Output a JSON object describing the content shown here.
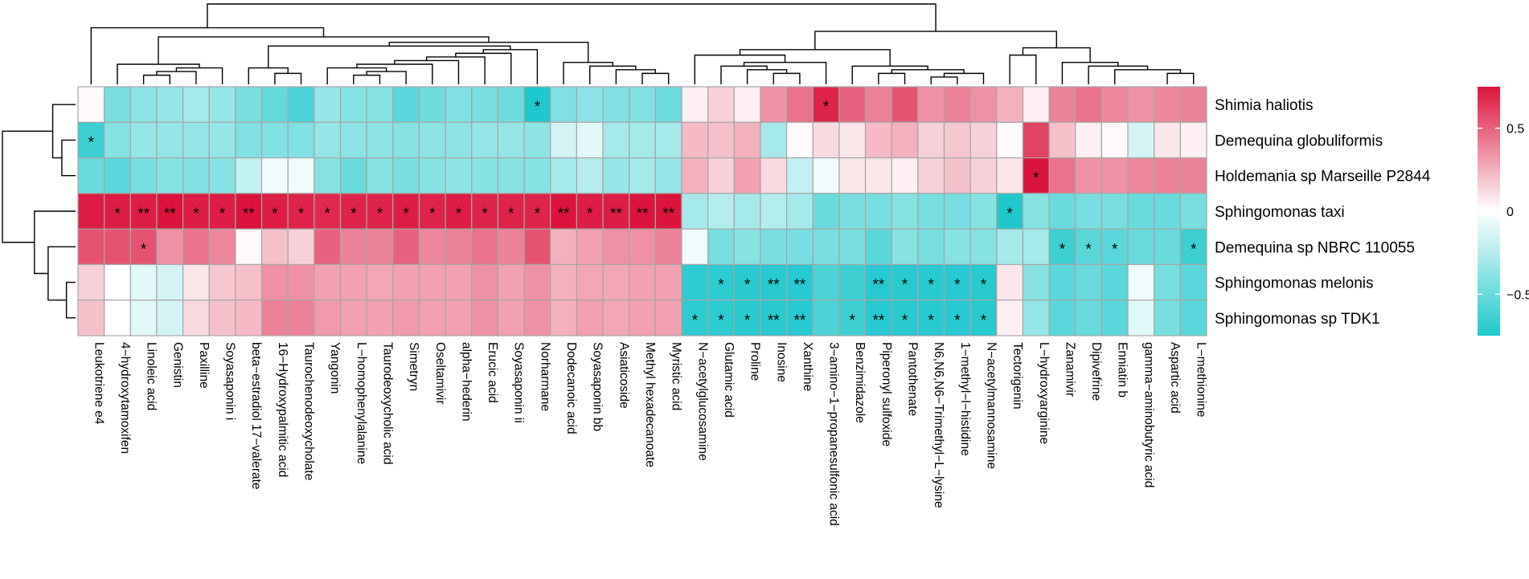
{
  "chart_data": {
    "type": "heatmap",
    "title": "",
    "colormap": {
      "low": "#1ec8cd",
      "mid": "#ffffff",
      "high": "#dc143c"
    },
    "value_range": [
      -0.75,
      0.75
    ],
    "legend": {
      "position": "right",
      "ticks": [
        0.5,
        0,
        -0.5
      ],
      "tick_labels": [
        "0.5",
        "0",
        "−0.5"
      ]
    },
    "rows": [
      "Shimia haliotis",
      "Demequina globuliformis",
      "Holdemania sp Marseille P2844",
      "Sphingomonas taxi",
      "Demequina sp NBRC 110055",
      "Sphingomonas melonis",
      "Sphingomonas sp TDK1"
    ],
    "columns": [
      "Leukotriene e4",
      "4−hydroxytamoxifen",
      "Linoleic acid",
      "Genistin",
      "Paxilline",
      "Soyasaponin i",
      "beta−estradiol 17−valerate",
      "16−Hydroxypalmitic acid",
      "Taurochenodeoxycholate",
      "Yangonin",
      "L−homophenylalanine",
      "Taurodeoxycholic acid",
      "Simetryn",
      "Oseltamivir",
      "alpha−hederin",
      "Erucic acid",
      "Soyasaponin ii",
      "Norharmane",
      "Dodecanoic acid",
      "Soyasaponin bb",
      "Asiaticoside",
      "Methyl hexadecanoate",
      "Myristic acid",
      "N−acetylglucosamine",
      "Glutamic acid",
      "Proline",
      "Inosine",
      "Xanthine",
      "3−amino−1−propanesulfonic acid",
      "Benzimidazole",
      "Piperonyl sulfoxide",
      "Pantothenate",
      "N6,N6,N6−Trimethyl−L−lysine",
      "1−methyl−l−histidine",
      "N−acetylmannosamine",
      "Tectorigenin",
      "L−hydroxyarginine",
      "Zanamivir",
      "Dipivefrine",
      "Enniatin b",
      "gamma−aminobutyric acid",
      "Aspartic acid",
      "L−methionine"
    ],
    "values": [
      [
        0.02,
        -0.45,
        -0.38,
        -0.35,
        -0.3,
        -0.35,
        -0.45,
        -0.52,
        -0.6,
        -0.35,
        -0.4,
        -0.4,
        -0.55,
        -0.48,
        -0.42,
        -0.45,
        -0.48,
        -0.75,
        -0.42,
        -0.38,
        -0.42,
        -0.42,
        -0.48,
        0.05,
        0.15,
        0.05,
        0.35,
        0.45,
        0.7,
        0.5,
        0.4,
        0.55,
        0.35,
        0.4,
        0.35,
        0.25,
        0.05,
        0.4,
        0.45,
        0.38,
        0.35,
        0.38,
        0.4
      ],
      [
        -0.65,
        -0.4,
        -0.35,
        -0.35,
        -0.35,
        -0.35,
        -0.42,
        -0.42,
        -0.42,
        -0.35,
        -0.38,
        -0.38,
        -0.4,
        -0.38,
        -0.38,
        -0.35,
        -0.35,
        -0.38,
        -0.15,
        -0.1,
        -0.3,
        -0.3,
        -0.3,
        0.22,
        0.2,
        0.25,
        -0.3,
        0.02,
        0.12,
        0.08,
        0.22,
        0.25,
        0.15,
        0.18,
        0.15,
        0.02,
        0.6,
        0.2,
        0.05,
        0.02,
        -0.15,
        0.08,
        0.05
      ],
      [
        -0.5,
        -0.55,
        -0.45,
        -0.4,
        -0.42,
        -0.4,
        -0.2,
        -0.05,
        -0.05,
        -0.4,
        -0.5,
        -0.4,
        -0.45,
        -0.4,
        -0.38,
        -0.4,
        -0.4,
        -0.4,
        -0.3,
        -0.25,
        -0.35,
        -0.3,
        -0.35,
        0.25,
        0.15,
        0.3,
        0.12,
        -0.2,
        -0.05,
        0.08,
        0.08,
        0.05,
        0.15,
        0.2,
        0.15,
        0.08,
        0.75,
        0.45,
        0.35,
        0.35,
        0.38,
        0.4,
        0.4
      ],
      [
        0.72,
        0.72,
        0.72,
        0.78,
        0.72,
        0.72,
        0.75,
        0.72,
        0.7,
        0.68,
        0.7,
        0.7,
        0.72,
        0.7,
        0.72,
        0.7,
        0.7,
        0.7,
        0.75,
        0.72,
        0.72,
        0.75,
        0.75,
        -0.3,
        -0.25,
        -0.3,
        -0.25,
        -0.3,
        -0.5,
        -0.45,
        -0.45,
        -0.4,
        -0.45,
        -0.45,
        -0.4,
        -0.75,
        -0.4,
        -0.5,
        -0.45,
        -0.45,
        -0.5,
        -0.5,
        -0.45
      ],
      [
        0.55,
        0.55,
        0.55,
        0.35,
        0.45,
        0.38,
        0.02,
        0.2,
        0.15,
        0.5,
        0.4,
        0.4,
        0.5,
        0.38,
        0.4,
        0.45,
        0.4,
        0.55,
        0.25,
        0.3,
        0.35,
        0.35,
        0.4,
        -0.05,
        -0.45,
        -0.4,
        -0.45,
        -0.45,
        -0.45,
        -0.45,
        -0.55,
        -0.4,
        -0.45,
        -0.4,
        -0.4,
        -0.3,
        -0.3,
        -0.65,
        -0.55,
        -0.55,
        -0.5,
        -0.5,
        -0.65
      ],
      [
        0.15,
        0.0,
        -0.1,
        -0.15,
        0.08,
        0.18,
        0.2,
        0.35,
        0.35,
        0.3,
        0.3,
        0.28,
        0.3,
        0.3,
        0.3,
        0.35,
        0.3,
        0.35,
        0.25,
        0.28,
        0.28,
        0.3,
        0.3,
        -0.7,
        -0.7,
        -0.72,
        -0.72,
        -0.72,
        -0.6,
        -0.65,
        -0.72,
        -0.72,
        -0.72,
        -0.72,
        -0.72,
        0.08,
        -0.4,
        -0.55,
        -0.5,
        -0.55,
        -0.05,
        -0.45,
        -0.55
      ],
      [
        0.2,
        0.0,
        -0.1,
        -0.15,
        0.12,
        0.2,
        0.22,
        0.4,
        0.4,
        0.32,
        0.3,
        0.3,
        0.32,
        0.3,
        0.3,
        0.35,
        0.3,
        0.35,
        0.25,
        0.3,
        0.28,
        0.3,
        0.3,
        -0.7,
        -0.7,
        -0.72,
        -0.72,
        -0.72,
        -0.6,
        -0.65,
        -0.72,
        -0.72,
        -0.72,
        -0.72,
        -0.72,
        0.05,
        -0.35,
        -0.55,
        -0.5,
        -0.55,
        -0.1,
        -0.45,
        -0.55
      ]
    ],
    "significance": [
      [
        "",
        "",
        "",
        "",
        "",
        "",
        "",
        "",
        "",
        "",
        "",
        "",
        "",
        "",
        "",
        "",
        "",
        "*",
        "",
        "",
        "",
        "",
        "",
        "",
        "",
        "",
        "",
        "",
        "*",
        "",
        "",
        "",
        "",
        "",
        "",
        "",
        "",
        "",
        "",
        "",
        "",
        "",
        ""
      ],
      [
        "*",
        "",
        "",
        "",
        "",
        "",
        "",
        "",
        "",
        "",
        "",
        "",
        "",
        "",
        "",
        "",
        "",
        "",
        "",
        "",
        "",
        "",
        "",
        "",
        "",
        "",
        "",
        "",
        "",
        "",
        "",
        "",
        "",
        "",
        "",
        "",
        "",
        "",
        "",
        "",
        "",
        "",
        ""
      ],
      [
        "",
        "",
        "",
        "",
        "",
        "",
        "",
        "",
        "",
        "",
        "",
        "",
        "",
        "",
        "",
        "",
        "",
        "",
        "",
        "",
        "",
        "",
        "",
        "",
        "",
        "",
        "",
        "",
        "",
        "",
        "",
        "",
        "",
        "",
        "",
        "",
        "*",
        "",
        "",
        "",
        "",
        "",
        ""
      ],
      [
        "",
        "*",
        "**",
        "**",
        "*",
        "*",
        "**",
        "*",
        "*",
        "*",
        "*",
        "*",
        "*",
        "*",
        "*",
        "*",
        "*",
        "*",
        "**",
        "*",
        "**",
        "**",
        "**",
        "",
        "",
        "",
        "",
        "",
        "",
        "",
        "",
        "",
        "",
        "",
        "",
        "*",
        "",
        "",
        "",
        "",
        "",
        "",
        ""
      ],
      [
        "",
        "",
        "*",
        "",
        "",
        "",
        "",
        "",
        "",
        "",
        "",
        "",
        "",
        "",
        "",
        "",
        "",
        "",
        "",
        "",
        "",
        "",
        "",
        "",
        "",
        "",
        "",
        "",
        "",
        "",
        "",
        "",
        "",
        "",
        "",
        "",
        "",
        "*",
        "*",
        "*",
        "",
        "",
        "*"
      ],
      [
        "",
        "",
        "",
        "",
        "",
        "",
        "",
        "",
        "",
        "",
        "",
        "",
        "",
        "",
        "",
        "",
        "",
        "",
        "",
        "",
        "",
        "",
        "",
        "",
        "*",
        "*",
        "**",
        "**",
        "",
        "",
        "**",
        "*",
        "*",
        "*",
        "*",
        "",
        "",
        "",
        "",
        "",
        "",
        "",
        ""
      ],
      [
        "",
        "",
        "",
        "",
        "",
        "",
        "",
        "",
        "",
        "",
        "",
        "",
        "",
        "",
        "",
        "",
        "",
        "",
        "",
        "",
        "",
        "",
        "",
        "*",
        "*",
        "*",
        "**",
        "**",
        "",
        "*",
        "**",
        "*",
        "*",
        "*",
        "*",
        "",
        "",
        "",
        "",
        "",
        "",
        "",
        ""
      ]
    ],
    "col_dendrogram": [
      [
        [
          43,
          40,
          0.2
        ],
        [
          41,
          42,
          0.3
        ],
        [
          44,
          39,
          0.4
        ],
        [
          45,
          38,
          0.5
        ],
        [
          46,
          37,
          0.6
        ],
        [
          35,
          36,
          0.8
        ],
        [
          47,
          48,
          1.0
        ],
        [
          2,
          3,
          0.25
        ],
        [
          50,
          4,
          0.35
        ],
        [
          51,
          5,
          0.45
        ],
        [
          52,
          1,
          0.55
        ],
        [
          10,
          11,
          0.25
        ],
        [
          54,
          12,
          0.35
        ],
        [
          55,
          9,
          0.45
        ],
        [
          56,
          13,
          0.55
        ],
        [
          57,
          14,
          0.65
        ],
        [
          58,
          15,
          0.75
        ],
        [
          59,
          16,
          0.85
        ],
        [
          60,
          17,
          0.95
        ],
        [
          7,
          8,
          0.3
        ],
        [
          6,
          62,
          0.45
        ],
        [
          63,
          61,
          1.05
        ],
        [
          22,
          21,
          0.3
        ],
        [
          65,
          20,
          0.4
        ],
        [
          66,
          19,
          0.5
        ],
        [
          67,
          18,
          0.6
        ],
        [
          64,
          68,
          1.15
        ],
        [
          53,
          69,
          1.3
        ],
        [
          0,
          70,
          1.55
        ],
        [
          32,
          33,
          0.2
        ],
        [
          72,
          34,
          0.3
        ],
        [
          30,
          31,
          0.3
        ],
        [
          73,
          74,
          0.4
        ],
        [
          29,
          75,
          0.5
        ],
        [
          27,
          26,
          0.3
        ],
        [
          77,
          25,
          0.4
        ],
        [
          24,
          78,
          0.5
        ],
        [
          79,
          28,
          0.6
        ],
        [
          23,
          80,
          0.8
        ],
        [
          81,
          76,
          0.95
        ],
        [
          82,
          49,
          1.45
        ],
        [
          71,
          83,
          2.2
        ]
      ]
    ],
    "row_dendrogram": [
      [
        1,
        2,
        0.3
      ],
      [
        0,
        7,
        0.5
      ],
      [
        5,
        6,
        0.2
      ],
      [
        4,
        9,
        0.6
      ],
      [
        3,
        10,
        0.9
      ],
      [
        8,
        11,
        1.6
      ]
    ]
  }
}
